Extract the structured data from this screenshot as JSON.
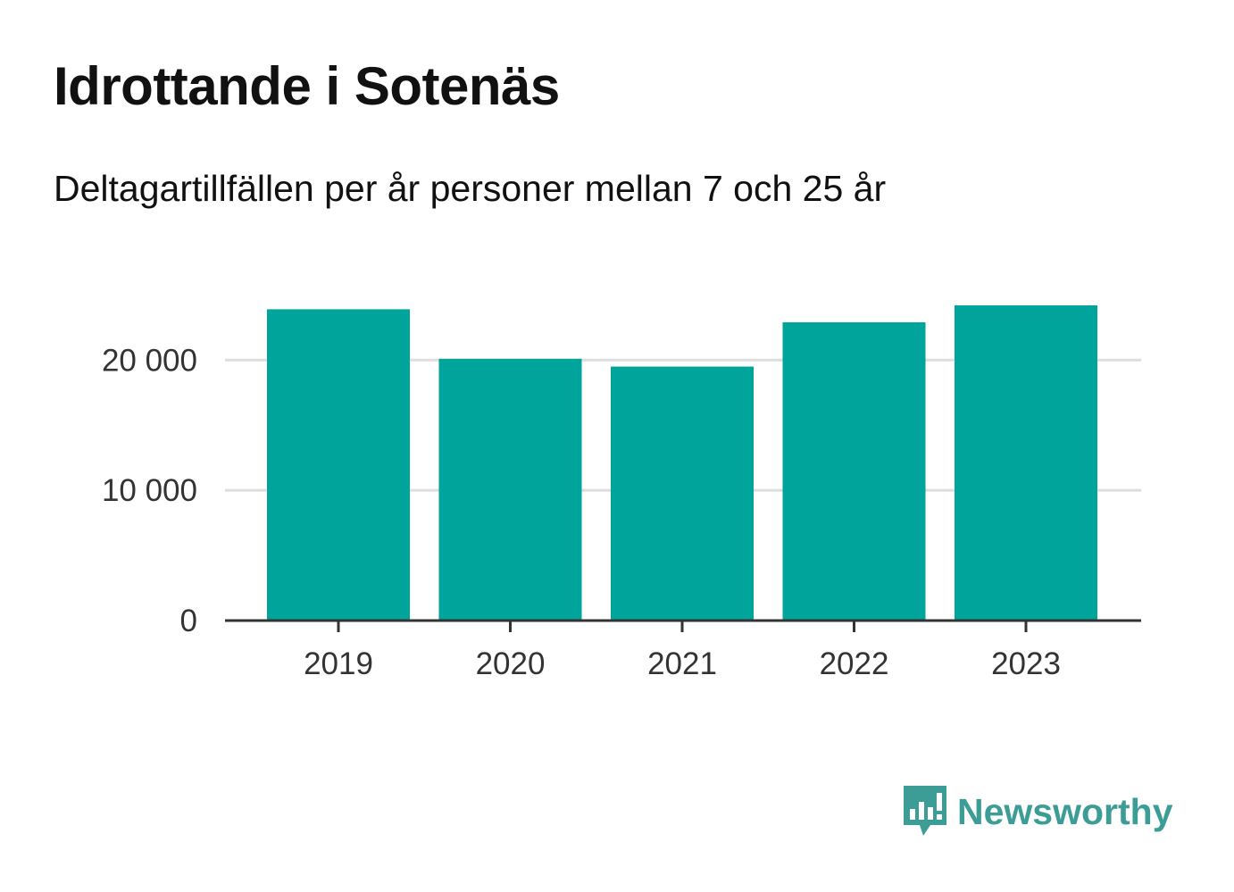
{
  "chart_data": {
    "type": "bar",
    "title": "Idrottande i Sotenäs",
    "subtitle": "Deltagartillfällen per år personer mellan 7 och 25 år",
    "categories": [
      "2019",
      "2020",
      "2021",
      "2022",
      "2023"
    ],
    "values": [
      23900,
      20100,
      19500,
      22900,
      24200
    ],
    "ylim": [
      0,
      24200
    ],
    "yticks": [
      0,
      10000,
      20000
    ],
    "ytick_labels": [
      "0",
      "10 000",
      "20 000"
    ],
    "xlabel": "",
    "ylabel": "",
    "grid": true,
    "legend": "none",
    "bar_color": "#00a49a",
    "grid_color": "#dddddd",
    "axis_color": "#333333"
  },
  "brand": {
    "name": "Newsworthy",
    "color": "#3c9d96",
    "icon": "bar-chart-speech-bubble-icon"
  }
}
